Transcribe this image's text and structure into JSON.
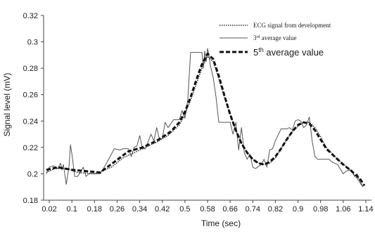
{
  "chart_data": {
    "type": "line",
    "title": "",
    "xlabel": "Time (sec)",
    "ylabel": "Signal level (mV)",
    "xlim": [
      0,
      1.16
    ],
    "ylim": [
      0.18,
      0.32
    ],
    "grid": false,
    "legend_position": "top-right",
    "x_ticks": [
      "0.02",
      "0.1",
      "0.18",
      "0.26",
      "0.34",
      "0.42",
      "0.5",
      "0.58",
      "0.66",
      "0.74",
      "0.82",
      "0.9",
      "0.98",
      "1.06",
      "1.14"
    ],
    "y_ticks": [
      "0.18",
      "0.2",
      "0.22",
      "0.24",
      "0.26",
      "0.28",
      "0.3",
      "0.32"
    ],
    "series": [
      {
        "name": "ECG signal from development",
        "style": "dotted-thin",
        "color": "#333333",
        "x": [
          0.01,
          0.04,
          0.08,
          0.12,
          0.18,
          0.24,
          0.28,
          0.32,
          0.36,
          0.4,
          0.44,
          0.48,
          0.5,
          0.52,
          0.54,
          0.56,
          0.58,
          0.6,
          0.62,
          0.64,
          0.66,
          0.68,
          0.7,
          0.72,
          0.74,
          0.76,
          0.78,
          0.8,
          0.82,
          0.84,
          0.86,
          0.88,
          0.9,
          0.92,
          0.94,
          0.96,
          0.98,
          1.0,
          1.04,
          1.08,
          1.13
        ],
        "y": [
          0.201,
          0.204,
          0.204,
          0.201,
          0.2,
          0.205,
          0.212,
          0.216,
          0.22,
          0.224,
          0.229,
          0.237,
          0.245,
          0.256,
          0.268,
          0.28,
          0.289,
          0.285,
          0.272,
          0.258,
          0.245,
          0.233,
          0.223,
          0.216,
          0.211,
          0.208,
          0.207,
          0.208,
          0.212,
          0.219,
          0.226,
          0.232,
          0.236,
          0.239,
          0.239,
          0.235,
          0.228,
          0.22,
          0.211,
          0.204,
          0.191
        ]
      },
      {
        "name": "3rd average value",
        "style": "solid-thin",
        "color": "#555555",
        "x": [
          0.01,
          0.02,
          0.035,
          0.05,
          0.06,
          0.065,
          0.07,
          0.08,
          0.09,
          0.095,
          0.1,
          0.11,
          0.12,
          0.13,
          0.14,
          0.15,
          0.16,
          0.17,
          0.18,
          0.2,
          0.22,
          0.25,
          0.27,
          0.28,
          0.3,
          0.31,
          0.32,
          0.33,
          0.34,
          0.35,
          0.36,
          0.38,
          0.39,
          0.4,
          0.41,
          0.42,
          0.43,
          0.44,
          0.46,
          0.48,
          0.49,
          0.5,
          0.51,
          0.52,
          0.54,
          0.56,
          0.565,
          0.57,
          0.575,
          0.58,
          0.585,
          0.59,
          0.6,
          0.61,
          0.62,
          0.64,
          0.66,
          0.67,
          0.68,
          0.69,
          0.7,
          0.71,
          0.72,
          0.73,
          0.74,
          0.75,
          0.77,
          0.78,
          0.79,
          0.8,
          0.81,
          0.82,
          0.84,
          0.86,
          0.87,
          0.88,
          0.89,
          0.9,
          0.91,
          0.92,
          0.93,
          0.94,
          0.95,
          0.96,
          0.97,
          0.98,
          0.99,
          1.0,
          1.01,
          1.02,
          1.04,
          1.06,
          1.07,
          1.09,
          1.1,
          1.11,
          1.12,
          1.13
        ],
        "y": [
          0.2,
          0.205,
          0.206,
          0.204,
          0.208,
          0.203,
          0.207,
          0.192,
          0.206,
          0.222,
          0.215,
          0.198,
          0.198,
          0.201,
          0.205,
          0.198,
          0.2,
          0.2,
          0.2,
          0.2,
          0.207,
          0.219,
          0.218,
          0.219,
          0.219,
          0.213,
          0.22,
          0.221,
          0.229,
          0.219,
          0.219,
          0.23,
          0.225,
          0.235,
          0.226,
          0.227,
          0.239,
          0.235,
          0.241,
          0.241,
          0.248,
          0.242,
          0.256,
          0.292,
          0.292,
          0.292,
          0.28,
          0.293,
          0.285,
          0.295,
          0.29,
          0.282,
          0.273,
          0.258,
          0.239,
          0.239,
          0.239,
          0.23,
          0.239,
          0.218,
          0.235,
          0.216,
          0.211,
          0.215,
          0.205,
          0.204,
          0.207,
          0.211,
          0.205,
          0.218,
          0.219,
          0.225,
          0.234,
          0.234,
          0.235,
          0.233,
          0.24,
          0.241,
          0.24,
          0.235,
          0.237,
          0.243,
          0.225,
          0.213,
          0.211,
          0.211,
          0.211,
          0.211,
          0.211,
          0.209,
          0.207,
          0.2,
          0.202,
          0.203,
          0.198,
          0.2,
          0.193,
          0.19
        ]
      },
      {
        "name": "5th average value",
        "style": "dashed-thick",
        "color": "#111111",
        "x": [
          0.01,
          0.05,
          0.1,
          0.15,
          0.2,
          0.25,
          0.3,
          0.35,
          0.4,
          0.45,
          0.48,
          0.5,
          0.52,
          0.54,
          0.56,
          0.58,
          0.6,
          0.62,
          0.64,
          0.66,
          0.68,
          0.7,
          0.72,
          0.74,
          0.76,
          0.78,
          0.8,
          0.82,
          0.84,
          0.86,
          0.88,
          0.9,
          0.92,
          0.94,
          0.96,
          0.98,
          1.0,
          1.03,
          1.06,
          1.09,
          1.12,
          1.135
        ],
        "y": [
          0.203,
          0.205,
          0.203,
          0.202,
          0.201,
          0.209,
          0.217,
          0.22,
          0.225,
          0.232,
          0.239,
          0.247,
          0.258,
          0.271,
          0.283,
          0.291,
          0.287,
          0.274,
          0.259,
          0.245,
          0.233,
          0.223,
          0.216,
          0.211,
          0.208,
          0.207,
          0.209,
          0.213,
          0.219,
          0.226,
          0.232,
          0.237,
          0.239,
          0.238,
          0.233,
          0.226,
          0.219,
          0.213,
          0.207,
          0.202,
          0.196,
          0.191
        ]
      }
    ],
    "legend": {
      "entries": [
        {
          "text": "ECG signal from development",
          "size": "small"
        },
        {
          "text_main": "3",
          "text_sup": "rd",
          "text_rest": " average value",
          "size": "small"
        },
        {
          "text_main": "5",
          "text_sup": "th",
          "text_rest": " average value",
          "size": "large"
        }
      ]
    }
  }
}
